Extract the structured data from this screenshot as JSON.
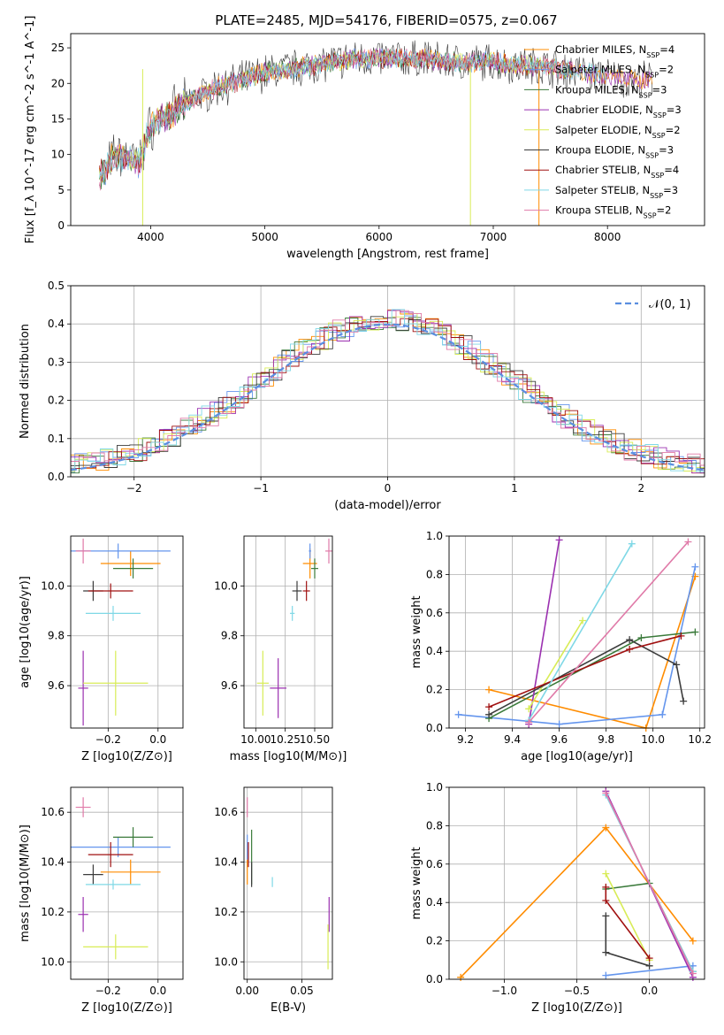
{
  "figure_title": "PLATE=2485, MJD=54176, FIBERID=0575, z=0.067",
  "colors": [
    "#ff8c00",
    "#6495ed",
    "#3a7a3a",
    "#9b30b0",
    "#d8ec56",
    "#3c3c3c",
    "#a01010",
    "#7fd8e6",
    "#e07aa8"
  ],
  "chart_data": [
    {
      "id": "spectrum",
      "type": "line",
      "title": "PLATE=2485, MJD=54176, FIBERID=0575, z=0.067",
      "xlabel": "wavelength [Angstrom, rest frame]",
      "ylabel": "Flux [f_λ 10^-17 erg cm^-2 s^-1 A^-1]",
      "xlim": [
        3300,
        8850
      ],
      "ylim": [
        0,
        27
      ],
      "xticks": [
        4000,
        5000,
        6000,
        7000,
        8000
      ],
      "yticks": [
        0,
        5,
        10,
        15,
        20,
        25
      ],
      "grid": false,
      "legend": "upper-right",
      "continuum": {
        "x": [
          3550,
          3700,
          3900,
          4000,
          4200,
          4400,
          4600,
          4800,
          5000,
          5200,
          5400,
          5600,
          5800,
          6000,
          6200,
          6400,
          6600,
          6800,
          7000,
          7200,
          7400,
          7600,
          7800,
          8000,
          8200,
          8400
        ],
        "y": [
          7,
          10,
          9,
          14,
          16,
          18,
          19.5,
          20.5,
          21.5,
          22,
          22.5,
          23,
          23.5,
          23.5,
          23.5,
          23.5,
          23,
          23,
          23,
          22.5,
          22.5,
          22,
          21.5,
          21,
          20.5,
          20.5
        ]
      },
      "series": [
        {
          "name": "Chabrier MILES",
          "nssp": "4"
        },
        {
          "name": "Salpeter MILES",
          "nssp": "2"
        },
        {
          "name": "Kroupa MILES",
          "nssp": "3"
        },
        {
          "name": "Chabrier ELODIE",
          "nssp": "3"
        },
        {
          "name": "Salpeter ELODIE",
          "nssp": "2"
        },
        {
          "name": "Kroupa ELODIE",
          "nssp": "3"
        },
        {
          "name": "Chabrier STELIB",
          "nssp": "4"
        },
        {
          "name": "Salpeter STELIB",
          "nssp": "3"
        },
        {
          "name": "Kroupa STELIB",
          "nssp": "2"
        }
      ]
    },
    {
      "id": "residuals",
      "type": "line",
      "xlabel": "(data-model)/error",
      "ylabel": "Normed distribution",
      "xlim": [
        -2.5,
        2.5
      ],
      "ylim": [
        0,
        0.5
      ],
      "xticks": [
        -2,
        -1,
        0,
        1,
        2
      ],
      "yticks": [
        0.0,
        0.1,
        0.2,
        0.3,
        0.4,
        0.5
      ],
      "grid": true,
      "legend": "upper-right",
      "legend_label": "𝒩(0, 1)"
    },
    {
      "id": "age_vs_Z",
      "type": "scatter",
      "xlabel": "Z [log10(Z/Z⊙)]",
      "ylabel": "age  [log10(age/yr)]",
      "xlim": [
        -0.35,
        0.1
      ],
      "ylim": [
        9.43,
        10.2
      ],
      "xticks": [
        -0.2,
        0.0
      ],
      "yticks": [
        9.6,
        9.8,
        10.0
      ],
      "grid": true,
      "points": [
        {
          "x": -0.11,
          "y": 10.09,
          "xerr": 0.12,
          "yerr": 0.05
        },
        {
          "x": -0.16,
          "y": 10.14,
          "xerr": 0.21,
          "yerr": 0.03
        },
        {
          "x": -0.1,
          "y": 10.07,
          "xerr": 0.08,
          "yerr": 0.04
        },
        {
          "x": -0.3,
          "y": 9.59,
          "xerr": 0.02,
          "yerr": 0.15
        },
        {
          "x": -0.17,
          "y": 9.61,
          "xerr": 0.13,
          "yerr": 0.13
        },
        {
          "x": -0.26,
          "y": 9.98,
          "xerr": 0.04,
          "yerr": 0.04
        },
        {
          "x": -0.19,
          "y": 9.98,
          "xerr": 0.09,
          "yerr": 0.03
        },
        {
          "x": -0.18,
          "y": 9.89,
          "xerr": 0.11,
          "yerr": 0.03
        },
        {
          "x": -0.3,
          "y": 10.14,
          "xerr": 0.03,
          "yerr": 0.05
        }
      ]
    },
    {
      "id": "age_vs_mass",
      "type": "scatter",
      "xlabel": "mass [log10(M/M⊙)]",
      "ylabel": "",
      "xlim": [
        9.9,
        10.65
      ],
      "ylim": [
        9.43,
        10.2
      ],
      "xticks": [
        10.0,
        10.25,
        10.5
      ],
      "yticks": [
        9.6,
        9.8,
        10.0
      ],
      "grid": true,
      "points": [
        {
          "x": 10.46,
          "y": 10.09,
          "xerr": 0.06,
          "yerr": 0.06
        },
        {
          "x": 10.46,
          "y": 10.14,
          "xerr": 0.01,
          "yerr": 0.03
        },
        {
          "x": 10.5,
          "y": 10.07,
          "xerr": 0.03,
          "yerr": 0.04
        },
        {
          "x": 10.19,
          "y": 9.59,
          "xerr": 0.07,
          "yerr": 0.12
        },
        {
          "x": 10.06,
          "y": 9.61,
          "xerr": 0.05,
          "yerr": 0.13
        },
        {
          "x": 10.35,
          "y": 9.98,
          "xerr": 0.04,
          "yerr": 0.04
        },
        {
          "x": 10.43,
          "y": 9.98,
          "xerr": 0.03,
          "yerr": 0.04
        },
        {
          "x": 10.31,
          "y": 9.89,
          "xerr": 0.02,
          "yerr": 0.03
        },
        {
          "x": 10.62,
          "y": 10.14,
          "xerr": 0.03,
          "yerr": 0.05
        }
      ]
    },
    {
      "id": "weight_vs_age",
      "type": "line",
      "xlabel": "age  [log10(age/yr)]",
      "ylabel": "mass weight",
      "xlim": [
        9.13,
        10.22
      ],
      "ylim": [
        0,
        1
      ],
      "xticks": [
        9.2,
        9.4,
        9.6,
        9.8,
        10.0,
        10.2
      ],
      "yticks": [
        0.0,
        0.2,
        0.4,
        0.6,
        0.8,
        1.0
      ],
      "grid": true,
      "series": [
        {
          "x": [
            9.3,
            9.97,
            10.18
          ],
          "y": [
            0.2,
            0.0,
            0.79
          ]
        },
        {
          "x": [
            9.17,
            9.6,
            10.04,
            10.18
          ],
          "y": [
            0.07,
            0.02,
            0.07,
            0.84
          ]
        },
        {
          "x": [
            9.3,
            9.95,
            10.18
          ],
          "y": [
            0.05,
            0.47,
            0.5
          ]
        },
        {
          "x": [
            9.47,
            9.6
          ],
          "y": [
            0.02,
            0.98
          ]
        },
        {
          "x": [
            9.47,
            9.7
          ],
          "y": [
            0.1,
            0.56
          ]
        },
        {
          "x": [
            9.3,
            9.9,
            10.1,
            10.13
          ],
          "y": [
            0.07,
            0.46,
            0.33,
            0.14
          ]
        },
        {
          "x": [
            9.3,
            9.9,
            10.12
          ],
          "y": [
            0.11,
            0.41,
            0.48
          ]
        },
        {
          "x": [
            9.47,
            9.91
          ],
          "y": [
            0.04,
            0.96
          ]
        },
        {
          "x": [
            9.47,
            10.15
          ],
          "y": [
            0.03,
            0.97
          ]
        }
      ]
    },
    {
      "id": "mass_vs_Z",
      "type": "scatter",
      "xlabel": "Z [log10(Z/Z⊙)]",
      "ylabel": "mass [log10(M/M⊙)]",
      "xlim": [
        -0.35,
        0.1
      ],
      "ylim": [
        9.93,
        10.7
      ],
      "xticks": [
        -0.2,
        0.0
      ],
      "yticks": [
        10.0,
        10.2,
        10.4,
        10.6
      ],
      "grid": true,
      "points": [
        {
          "x": -0.11,
          "y": 10.36,
          "xerr": 0.12,
          "yerr": 0.05
        },
        {
          "x": -0.16,
          "y": 10.46,
          "xerr": 0.21,
          "yerr": 0.04
        },
        {
          "x": -0.1,
          "y": 10.5,
          "xerr": 0.08,
          "yerr": 0.04
        },
        {
          "x": -0.3,
          "y": 10.19,
          "xerr": 0.02,
          "yerr": 0.07
        },
        {
          "x": -0.17,
          "y": 10.06,
          "xerr": 0.13,
          "yerr": 0.05
        },
        {
          "x": -0.26,
          "y": 10.35,
          "xerr": 0.04,
          "yerr": 0.04
        },
        {
          "x": -0.19,
          "y": 10.43,
          "xerr": 0.09,
          "yerr": 0.05
        },
        {
          "x": -0.18,
          "y": 10.31,
          "xerr": 0.11,
          "yerr": 0.02
        },
        {
          "x": -0.3,
          "y": 10.62,
          "xerr": 0.03,
          "yerr": 0.04
        }
      ]
    },
    {
      "id": "mass_vs_ebv",
      "type": "scatter",
      "xlabel": "E(B-V)",
      "ylabel": "",
      "xlim": [
        -0.003,
        0.078
      ],
      "ylim": [
        9.93,
        10.7
      ],
      "xticks": [
        0.0,
        0.05
      ],
      "yticks": [
        10.0,
        10.2,
        10.4,
        10.6
      ],
      "grid": true,
      "points": [
        {
          "x": 0.0,
          "y": 10.36,
          "xerr": 0.0,
          "yerr": 0.05
        },
        {
          "x": 0.0,
          "y": 10.46,
          "xerr": 0.0,
          "yerr": 0.05
        },
        {
          "x": 0.004,
          "y": 10.42,
          "xerr": 0.0,
          "yerr": 0.11
        },
        {
          "x": 0.075,
          "y": 10.19,
          "xerr": 0.0,
          "yerr": 0.07
        },
        {
          "x": 0.074,
          "y": 10.06,
          "xerr": 0.0,
          "yerr": 0.09
        },
        {
          "x": 0.004,
          "y": 10.35,
          "xerr": 0.0,
          "yerr": 0.05
        },
        {
          "x": 0.001,
          "y": 10.43,
          "xerr": 0.0,
          "yerr": 0.05
        },
        {
          "x": 0.023,
          "y": 10.32,
          "xerr": 0.0,
          "yerr": 0.02
        },
        {
          "x": 0.0,
          "y": 10.62,
          "xerr": 0.0,
          "yerr": 0.04
        }
      ]
    },
    {
      "id": "weight_vs_Z",
      "type": "line",
      "xlabel": "Z [log10(Z/Z⊙)]",
      "ylabel": "mass weight",
      "xlim": [
        -1.38,
        0.38
      ],
      "ylim": [
        0,
        1
      ],
      "xticks": [
        -1.0,
        -0.5,
        0.0
      ],
      "yticks": [
        0.0,
        0.2,
        0.4,
        0.6,
        0.8,
        1.0
      ],
      "grid": true,
      "series": [
        {
          "x": [
            -1.3,
            -0.3,
            0.3
          ],
          "y": [
            0.01,
            0.79,
            0.2
          ]
        },
        {
          "x": [
            -0.3,
            0.3
          ],
          "y": [
            0.02,
            0.07
          ]
        },
        {
          "x": [
            -0.3,
            0.0,
            0.3
          ],
          "y": [
            0.47,
            0.5,
            0.04
          ]
        },
        {
          "x": [
            -0.3,
            0.3
          ],
          "y": [
            0.98,
            0.01
          ]
        },
        {
          "x": [
            -0.3,
            0.0
          ],
          "y": [
            0.55,
            0.1
          ]
        },
        {
          "x": [
            -0.3,
            -0.3,
            0.0
          ],
          "y": [
            0.33,
            0.14,
            0.07
          ]
        },
        {
          "x": [
            -0.3,
            -0.3,
            0.0
          ],
          "y": [
            0.48,
            0.41,
            0.11
          ]
        },
        {
          "x": [
            -0.3,
            0.3
          ],
          "y": [
            0.96,
            0.04
          ]
        },
        {
          "x": [
            -0.3,
            0.3
          ],
          "y": [
            0.97,
            0.03
          ]
        }
      ]
    }
  ]
}
